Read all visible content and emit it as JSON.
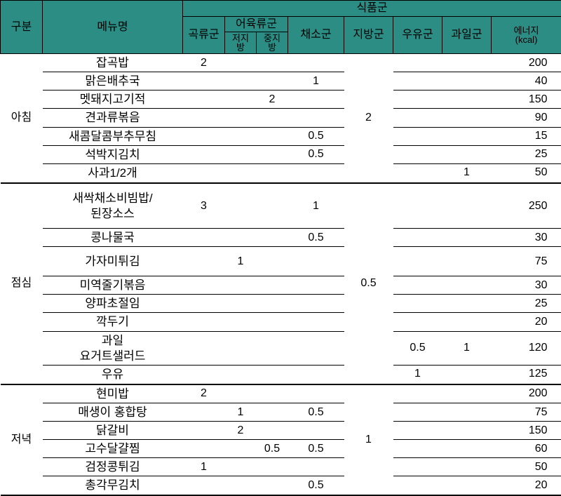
{
  "header": {
    "gubun": "구분",
    "menu": "메뉴명",
    "foodgroup": "식품군",
    "grain": "곡류군",
    "fishmeat": "어육류군",
    "lowfat": "저지\n방",
    "medfat": "중지\n방",
    "veg": "채소군",
    "fat": "지방군",
    "milk": "우유군",
    "fruit": "과일군",
    "energy": "에너지\n(kcal)"
  },
  "sections": [
    {
      "name": "아침",
      "fat_span_value": "2",
      "fat_span_start": 0,
      "fat_span_rows": 7,
      "rows": [
        {
          "menu": "잡곡밥",
          "grain": "2",
          "lowfat": "",
          "medfat": "",
          "veg": "",
          "milk": "",
          "fruit": "",
          "kcal": "200"
        },
        {
          "menu": "맑은배추국",
          "grain": "",
          "lowfat": "",
          "medfat": "",
          "veg": "1",
          "milk": "",
          "fruit": "",
          "kcal": "40"
        },
        {
          "menu": "멧돼지고기적",
          "grain": "",
          "lowfat": "",
          "medfat": "2",
          "veg": "",
          "milk": "",
          "fruit": "",
          "kcal": "150"
        },
        {
          "menu": "견과류볶음",
          "grain": "",
          "lowfat": "",
          "medfat": "",
          "veg": "",
          "milk": "",
          "fruit": "",
          "kcal": "90"
        },
        {
          "menu": "새콤달콤부추무침",
          "grain": "",
          "lowfat": "",
          "medfat": "",
          "veg": "0.5",
          "milk": "",
          "fruit": "",
          "kcal": "15"
        },
        {
          "menu": "석박지김치",
          "grain": "",
          "lowfat": "",
          "medfat": "",
          "veg": "0.5",
          "milk": "",
          "fruit": "",
          "kcal": "25"
        },
        {
          "menu": "사과1/2개",
          "grain": "",
          "lowfat": "",
          "medfat": "",
          "veg": "",
          "milk": "",
          "fruit": "1",
          "kcal": "50"
        }
      ]
    },
    {
      "name": "점심",
      "fat_span_value": "0.5",
      "fat_span_start": 0,
      "fat_span_rows": 8,
      "rows": [
        {
          "menu": "새싹채소비빔밥/\n된장소스",
          "grain": "3",
          "lowfat": "",
          "medfat": "",
          "veg": "1",
          "milk": "",
          "fruit": "",
          "kcal": "250",
          "tall": true
        },
        {
          "menu": "콩나물국",
          "grain": "",
          "lowfat": "",
          "medfat": "",
          "veg": "0.5",
          "milk": "",
          "fruit": "",
          "kcal": "30"
        },
        {
          "menu": "가자미튀김",
          "grain": "",
          "lowfat": "1",
          "medfat": "",
          "veg": "",
          "milk": "",
          "fruit": "",
          "kcal": "75",
          "tall": true
        },
        {
          "menu": "미역줄기볶음",
          "grain": "",
          "lowfat": "",
          "medfat": "",
          "veg": "",
          "milk": "",
          "fruit": "",
          "kcal": "30"
        },
        {
          "menu": "양파초절임",
          "grain": "",
          "lowfat": "",
          "medfat": "",
          "veg": "",
          "milk": "",
          "fruit": "",
          "kcal": "25"
        },
        {
          "menu": "깍두기",
          "grain": "",
          "lowfat": "",
          "medfat": "",
          "veg": "",
          "milk": "",
          "fruit": "",
          "kcal": "20"
        },
        {
          "menu": "과일\n요거트샐러드",
          "grain": "",
          "lowfat": "",
          "medfat": "",
          "veg": "",
          "milk": "0.5",
          "fruit": "1",
          "kcal": "120"
        },
        {
          "menu": "우유",
          "grain": "",
          "lowfat": "",
          "medfat": "",
          "veg": "",
          "milk": "1",
          "fruit": "",
          "kcal": "125"
        }
      ]
    },
    {
      "name": "저녁",
      "fat_span_value": "1",
      "fat_span_start": 0,
      "fat_span_rows": 6,
      "rows": [
        {
          "menu": "현미밥",
          "grain": "2",
          "lowfat": "",
          "medfat": "",
          "veg": "",
          "milk": "",
          "fruit": "",
          "kcal": "200"
        },
        {
          "menu": "매생이 홍합탕",
          "grain": "",
          "lowfat": "1",
          "medfat": "",
          "veg": "0.5",
          "milk": "",
          "fruit": "",
          "kcal": "75"
        },
        {
          "menu": "닭갈비",
          "grain": "",
          "lowfat": "2",
          "medfat": "",
          "veg": "",
          "milk": "",
          "fruit": "",
          "kcal": "150"
        },
        {
          "menu": "고수달걀찜",
          "grain": "",
          "lowfat": "",
          "medfat": "0.5",
          "veg": "0.5",
          "milk": "",
          "fruit": "",
          "kcal": "60"
        },
        {
          "menu": "검정콩튀김",
          "grain": "1",
          "lowfat": "",
          "medfat": "",
          "veg": "",
          "milk": "",
          "fruit": "",
          "kcal": "50"
        },
        {
          "menu": "총각무김치",
          "grain": "",
          "lowfat": "",
          "medfat": "",
          "veg": "0.5",
          "milk": "",
          "fruit": "",
          "kcal": "20"
        }
      ]
    }
  ]
}
